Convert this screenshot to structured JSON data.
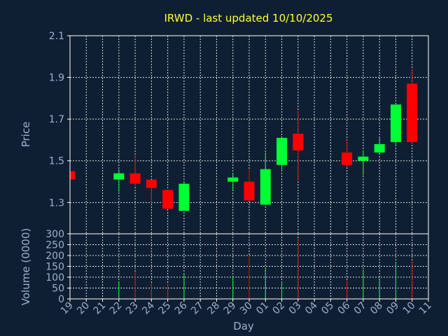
{
  "chart_data": {
    "type": "candlestick",
    "title": "IRWD - last updated 10/10/2025",
    "xlabel": "Day",
    "price_panel": {
      "ylabel": "Price",
      "ylim": [
        1.15,
        2.1
      ],
      "yticks": [
        "2.1",
        "1.9",
        "1.7",
        "1.5",
        "1.3"
      ],
      "ytick_values": [
        2.1,
        1.9,
        1.7,
        1.5,
        1.3
      ]
    },
    "volume_panel": {
      "ylabel": "Volume (0000)",
      "ylim": [
        0,
        300
      ],
      "yticks": [
        "300",
        "250",
        "200",
        "150",
        "100",
        "50",
        "0"
      ],
      "ytick_values": [
        300,
        250,
        200,
        150,
        100,
        50,
        0
      ]
    },
    "x_ticks": [
      "19",
      "20",
      "21",
      "22",
      "23",
      "24",
      "25",
      "26",
      "27",
      "28",
      "29",
      "30",
      "01",
      "02",
      "03",
      "04",
      "05",
      "06",
      "07",
      "08",
      "09",
      "10",
      "11"
    ],
    "up_color": "#00ff33",
    "down_color": "#ff0000",
    "candles": [
      {
        "day": "19",
        "open": 1.45,
        "close": 1.41,
        "high": 1.45,
        "low": 1.41,
        "volume": 0
      },
      {
        "day": "22",
        "open": 1.41,
        "close": 1.44,
        "high": 1.46,
        "low": 1.35,
        "volume": 80
      },
      {
        "day": "23",
        "open": 1.44,
        "close": 1.39,
        "high": 1.52,
        "low": 1.38,
        "volume": 125
      },
      {
        "day": "24",
        "open": 1.41,
        "close": 1.37,
        "high": 1.41,
        "low": 1.3,
        "volume": 75
      },
      {
        "day": "25",
        "open": 1.36,
        "close": 1.27,
        "high": 1.36,
        "low": 1.27,
        "volume": 70
      },
      {
        "day": "26",
        "open": 1.26,
        "close": 1.39,
        "high": 1.4,
        "low": 1.26,
        "volume": 115
      },
      {
        "day": "29",
        "open": 1.4,
        "close": 1.42,
        "high": 1.44,
        "low": 1.36,
        "volume": 105
      },
      {
        "day": "30",
        "open": 1.4,
        "close": 1.31,
        "high": 1.46,
        "low": 1.31,
        "volume": 200
      },
      {
        "day": "01",
        "open": 1.29,
        "close": 1.46,
        "high": 1.54,
        "low": 1.29,
        "volume": 145
      },
      {
        "day": "02",
        "open": 1.48,
        "close": 1.61,
        "high": 1.61,
        "low": 1.45,
        "volume": 80
      },
      {
        "day": "03",
        "open": 1.63,
        "close": 1.55,
        "high": 1.74,
        "low": 1.41,
        "volume": 280
      },
      {
        "day": "06",
        "open": 1.54,
        "close": 1.48,
        "high": 1.6,
        "low": 1.47,
        "volume": 85
      },
      {
        "day": "07",
        "open": 1.5,
        "close": 1.52,
        "high": 1.55,
        "low": 1.43,
        "volume": 135
      },
      {
        "day": "08",
        "open": 1.54,
        "close": 1.58,
        "high": 1.61,
        "low": 1.53,
        "volume": 95
      },
      {
        "day": "09",
        "open": 1.59,
        "close": 1.77,
        "high": 1.77,
        "low": 1.57,
        "volume": 170
      },
      {
        "day": "10",
        "open": 1.87,
        "close": 1.59,
        "high": 1.94,
        "low": 1.58,
        "volume": 175
      }
    ]
  }
}
